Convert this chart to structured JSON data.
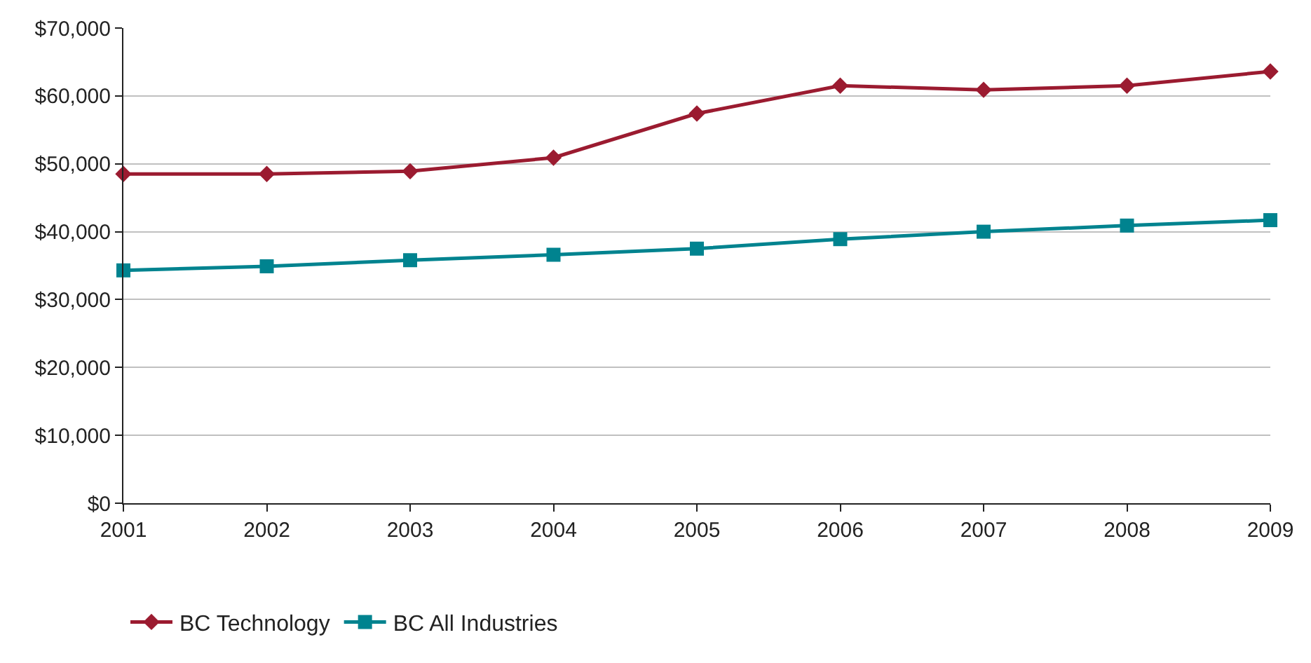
{
  "chart_data": {
    "type": "line",
    "categories": [
      "2001",
      "2002",
      "2003",
      "2004",
      "2005",
      "2006",
      "2007",
      "2008",
      "2009"
    ],
    "series": [
      {
        "name": "BC Technology",
        "color": "#9b1b30",
        "marker": "diamond",
        "values": [
          48500,
          48500,
          48900,
          50900,
          57400,
          61500,
          60900,
          61500,
          63600
        ]
      },
      {
        "name": "BC All Industries",
        "color": "#00838f",
        "marker": "square",
        "values": [
          34300,
          34900,
          35800,
          36600,
          37500,
          38900,
          40000,
          40900,
          41700
        ]
      }
    ],
    "ylim": [
      0,
      70000
    ],
    "yticks": [
      {
        "value": 0,
        "label": "$0"
      },
      {
        "value": 10000,
        "label": "$10,000"
      },
      {
        "value": 20000,
        "label": "$20,000"
      },
      {
        "value": 30000,
        "label": "$30,000"
      },
      {
        "value": 40000,
        "label": "$40,000"
      },
      {
        "value": 50000,
        "label": "$50,000"
      },
      {
        "value": 60000,
        "label": "$60,000"
      },
      {
        "value": 70000,
        "label": "$70,000"
      }
    ],
    "grid": "y",
    "legend": "bottom left",
    "line_style": "solid"
  }
}
